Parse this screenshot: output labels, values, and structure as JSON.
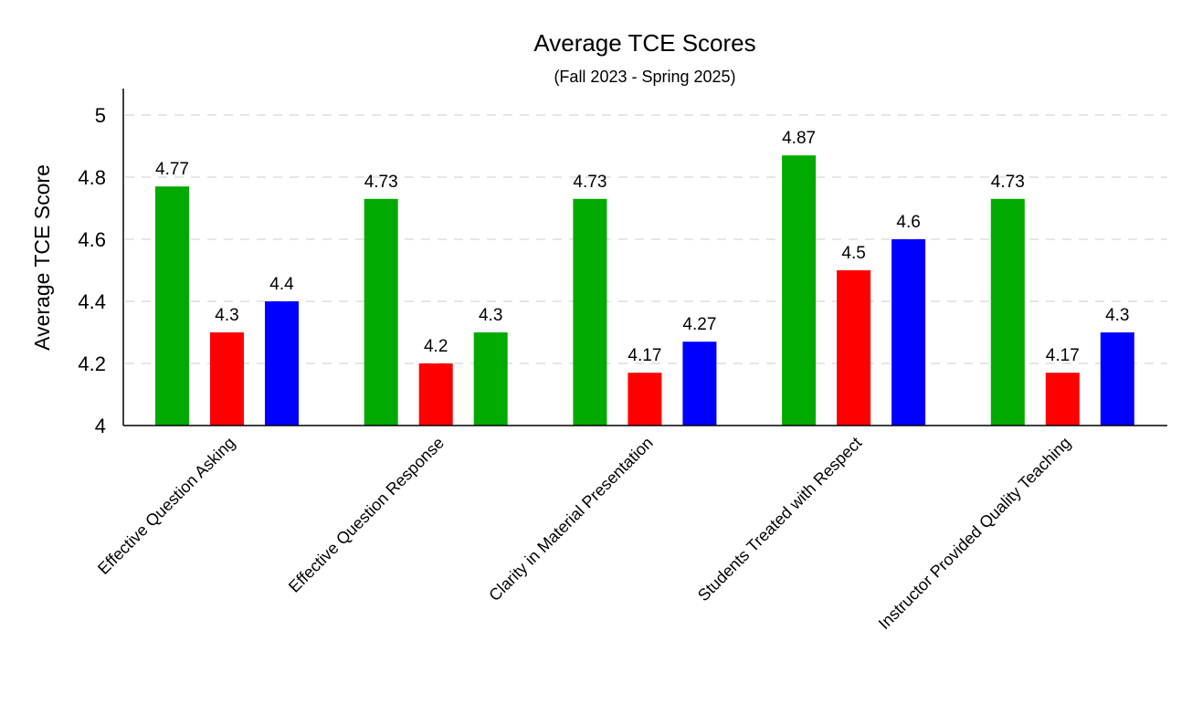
{
  "chart_data": {
    "type": "bar",
    "title": "Average TCE Scores",
    "subtitle": "(Fall 2023 - Spring 2025)",
    "xlabel": "",
    "ylabel": "Average TCE Score",
    "ylim": [
      4,
      5.08
    ],
    "yticks": [
      4,
      4.2,
      4.4,
      4.6,
      4.8,
      5
    ],
    "ytick_labels": [
      "4",
      "4.2",
      "4.4",
      "4.6",
      "4.8",
      "5"
    ],
    "grid": true,
    "legend": "none",
    "categories": [
      "Effective Question Asking",
      "Effective Question Response",
      "Clarity in Material Presentation",
      "Students Treated with Respect",
      "Instructor Provided Quality Teaching"
    ],
    "series": [
      {
        "name": "series-1",
        "values": [
          4.77,
          4.73,
          4.73,
          4.87,
          4.73
        ],
        "labels": [
          "4.77",
          "4.73",
          "4.73",
          "4.87",
          "4.73"
        ],
        "colors": [
          "#00aa00",
          "#00aa00",
          "#00aa00",
          "#00aa00",
          "#00aa00"
        ]
      },
      {
        "name": "series-2",
        "values": [
          4.3,
          4.2,
          4.17,
          4.5,
          4.17
        ],
        "labels": [
          "4.3",
          "4.2",
          "4.17",
          "4.5",
          "4.17"
        ],
        "colors": [
          "#ff0000",
          "#ff0000",
          "#ff0000",
          "#ff0000",
          "#ff0000"
        ]
      },
      {
        "name": "series-3",
        "values": [
          4.4,
          4.3,
          4.27,
          4.6,
          4.3
        ],
        "labels": [
          "4.4",
          "4.3",
          "4.27",
          "4.6",
          "4.3"
        ],
        "colors": [
          "#0000ff",
          "#00aa00",
          "#0000ff",
          "#0000ff",
          "#0000ff"
        ]
      }
    ]
  }
}
